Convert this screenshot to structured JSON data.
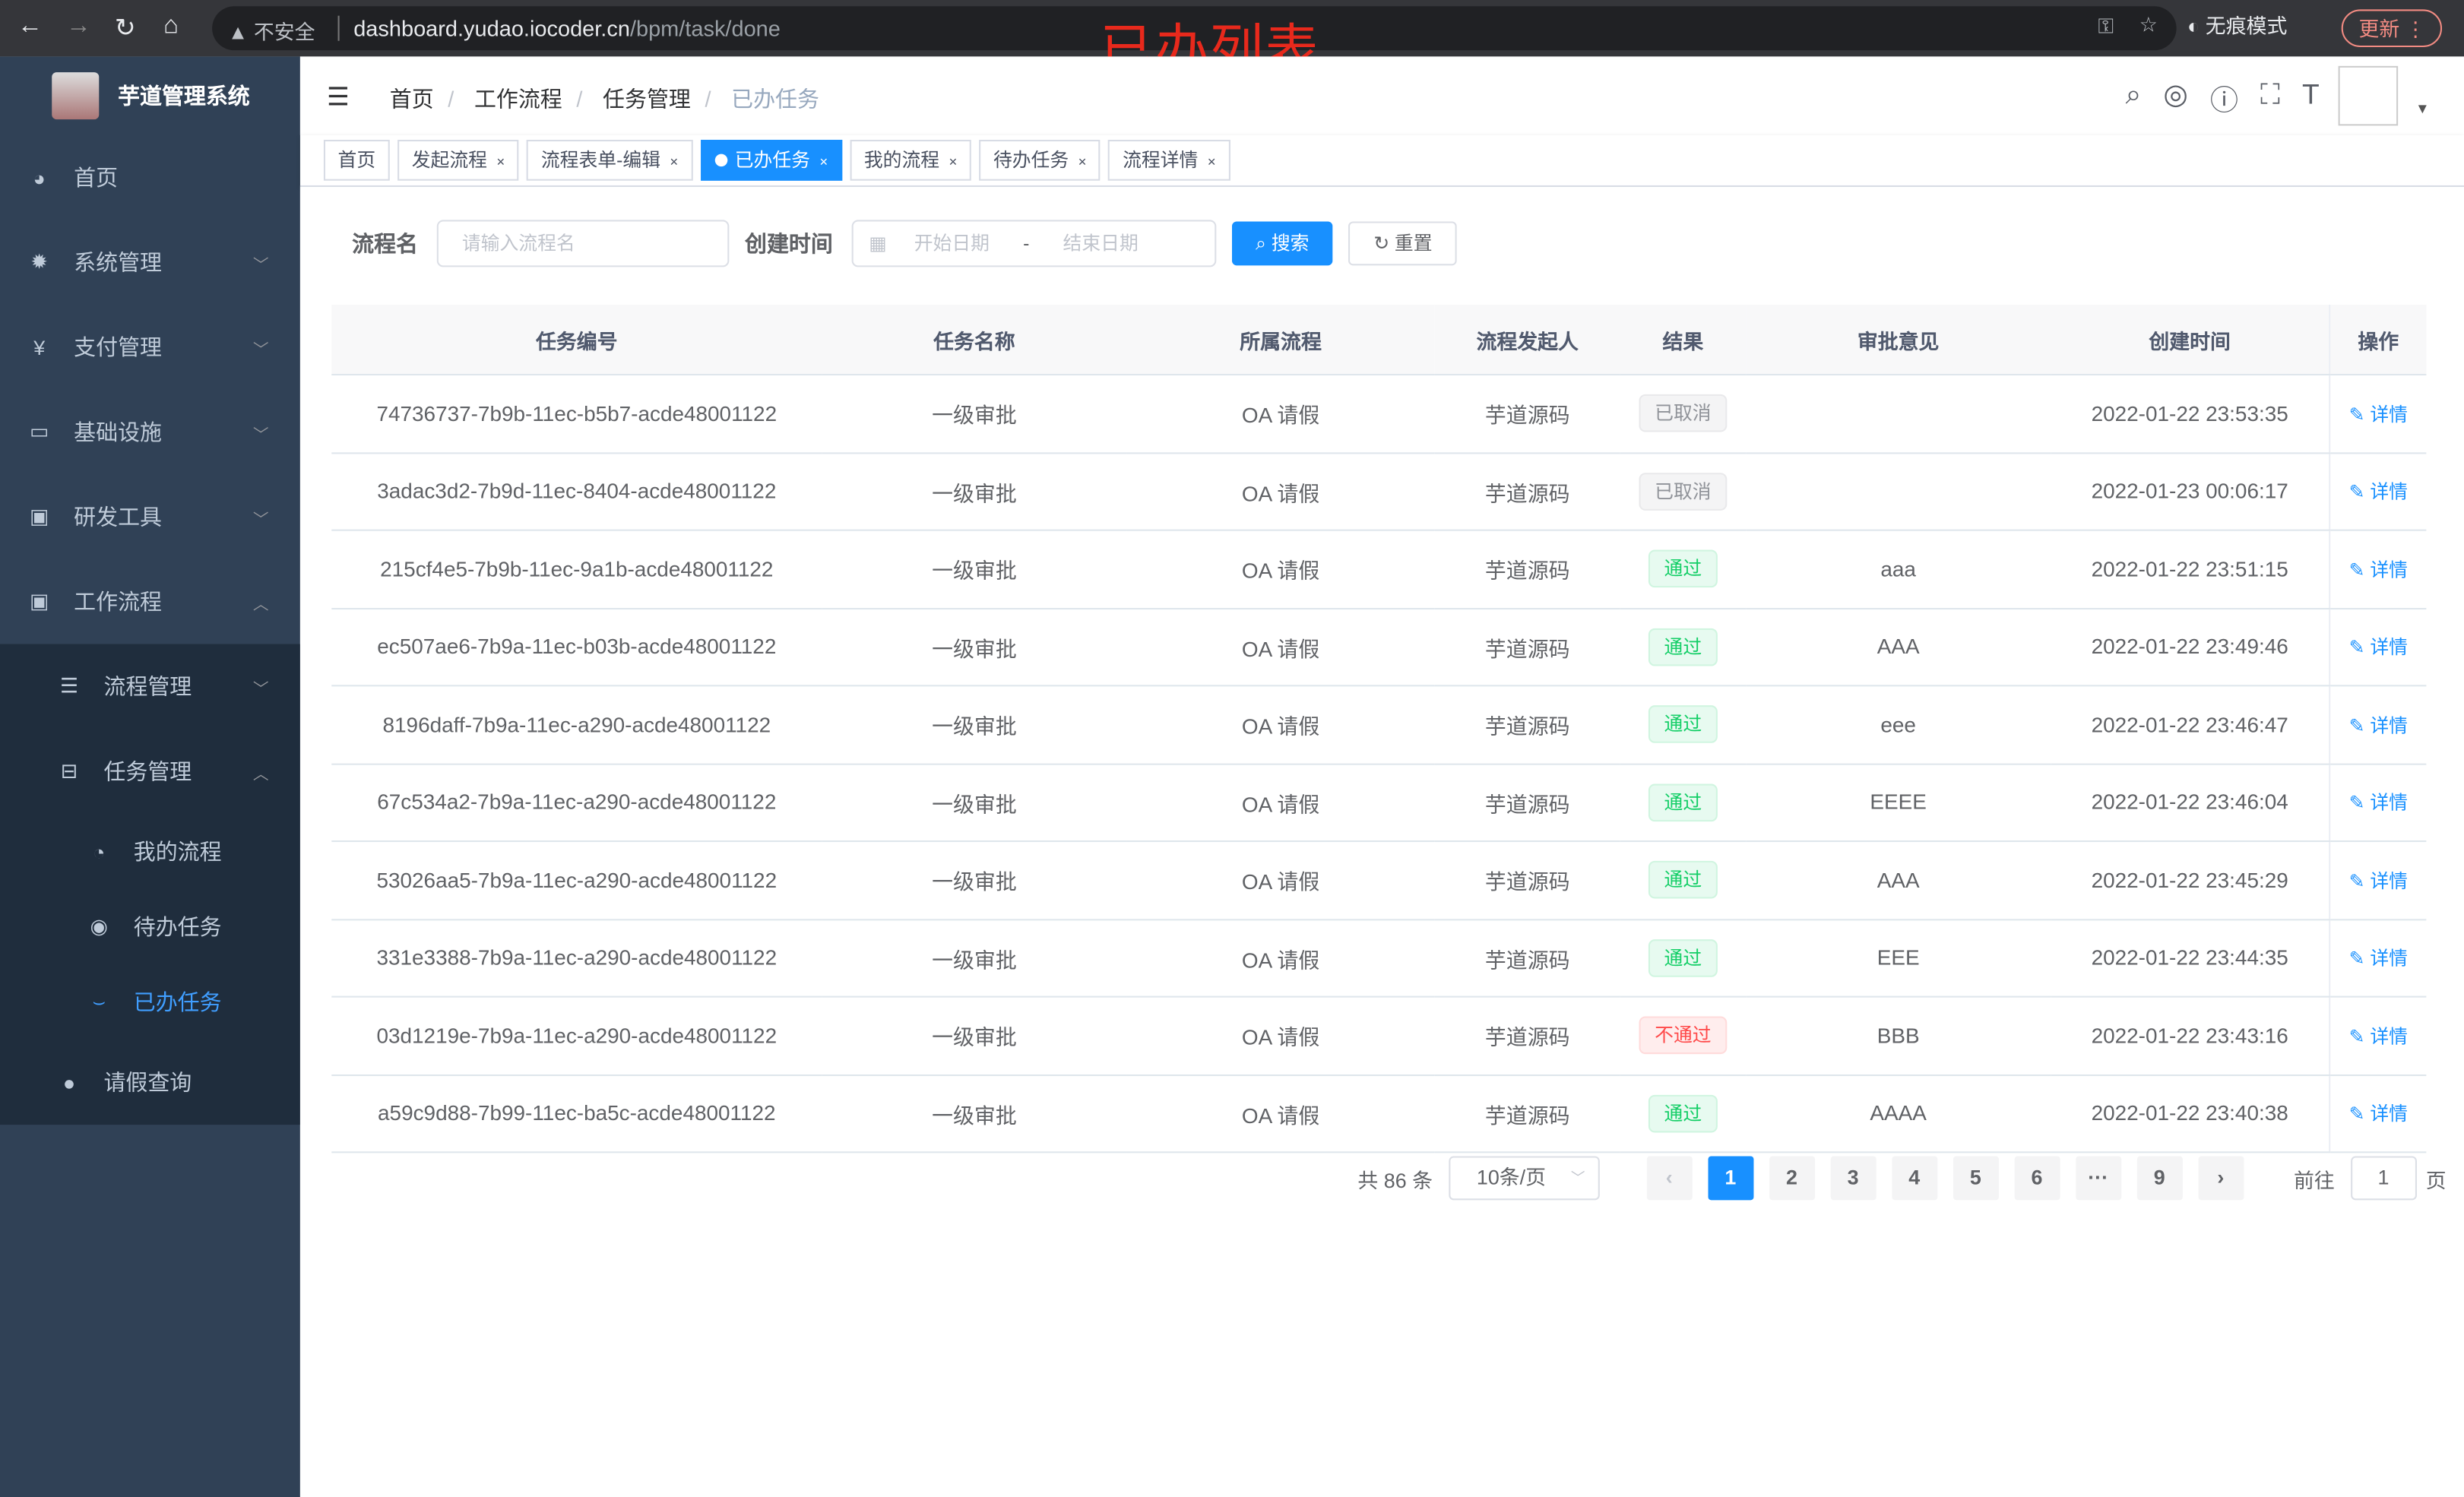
{
  "browser": {
    "url_host": "dashboard.yudao.iocoder.cn",
    "url_path": "/bpm/task/done",
    "security": "不安全",
    "incognito": "无痕模式",
    "update": "更新"
  },
  "annotation": "已办列表",
  "app": {
    "title": "芋道管理系统"
  },
  "sidebar": {
    "items": [
      {
        "label": "首页",
        "icon": "dashboard-icon"
      },
      {
        "label": "系统管理",
        "icon": "gear-icon"
      },
      {
        "label": "支付管理",
        "icon": "yen-icon"
      },
      {
        "label": "基础设施",
        "icon": "monitor-icon"
      },
      {
        "label": "研发工具",
        "icon": "toolbox-icon"
      },
      {
        "label": "工作流程",
        "icon": "toolbox-icon"
      }
    ],
    "workflow_children": [
      {
        "label": "流程管理"
      },
      {
        "label": "任务管理"
      },
      {
        "label": "请假查询"
      }
    ],
    "task_children": [
      {
        "label": "我的流程"
      },
      {
        "label": "待办任务"
      },
      {
        "label": "已办任务",
        "active": true
      }
    ]
  },
  "breadcrumb": [
    "首页",
    "工作流程",
    "任务管理",
    "已办任务"
  ],
  "tags": [
    {
      "label": "首页"
    },
    {
      "label": "发起流程"
    },
    {
      "label": "流程表单-编辑"
    },
    {
      "label": "已办任务",
      "active": true
    },
    {
      "label": "我的流程"
    },
    {
      "label": "待办任务"
    },
    {
      "label": "流程详情"
    }
  ],
  "search": {
    "name_label": "流程名",
    "name_placeholder": "请输入流程名",
    "time_label": "创建时间",
    "start_placeholder": "开始日期",
    "range_sep": "-",
    "end_placeholder": "结束日期",
    "search_btn": "搜索",
    "reset_btn": "重置"
  },
  "table": {
    "headers": [
      "任务编号",
      "任务名称",
      "所属流程",
      "流程发起人",
      "结果",
      "审批意见",
      "创建时间",
      "操作"
    ],
    "detail_label": "详情",
    "rows": [
      {
        "id": "74736737-7b9b-11ec-b5b7-acde48001122",
        "name": "一级审批",
        "process": "OA 请假",
        "starter": "芋道源码",
        "result": "已取消",
        "result_type": "info",
        "comment": "",
        "time": "2022-01-22 23:53:35"
      },
      {
        "id": "3adac3d2-7b9d-11ec-8404-acde48001122",
        "name": "一级审批",
        "process": "OA 请假",
        "starter": "芋道源码",
        "result": "已取消",
        "result_type": "info",
        "comment": "",
        "time": "2022-01-23 00:06:17"
      },
      {
        "id": "215cf4e5-7b9b-11ec-9a1b-acde48001122",
        "name": "一级审批",
        "process": "OA 请假",
        "starter": "芋道源码",
        "result": "通过",
        "result_type": "success",
        "comment": "aaa",
        "time": "2022-01-22 23:51:15"
      },
      {
        "id": "ec507ae6-7b9a-11ec-b03b-acde48001122",
        "name": "一级审批",
        "process": "OA 请假",
        "starter": "芋道源码",
        "result": "通过",
        "result_type": "success",
        "comment": "AAA",
        "time": "2022-01-22 23:49:46"
      },
      {
        "id": "8196daff-7b9a-11ec-a290-acde48001122",
        "name": "一级审批",
        "process": "OA 请假",
        "starter": "芋道源码",
        "result": "通过",
        "result_type": "success",
        "comment": "eee",
        "time": "2022-01-22 23:46:47"
      },
      {
        "id": "67c534a2-7b9a-11ec-a290-acde48001122",
        "name": "一级审批",
        "process": "OA 请假",
        "starter": "芋道源码",
        "result": "通过",
        "result_type": "success",
        "comment": "EEEE",
        "time": "2022-01-22 23:46:04"
      },
      {
        "id": "53026aa5-7b9a-11ec-a290-acde48001122",
        "name": "一级审批",
        "process": "OA 请假",
        "starter": "芋道源码",
        "result": "通过",
        "result_type": "success",
        "comment": "AAA",
        "time": "2022-01-22 23:45:29"
      },
      {
        "id": "331e3388-7b9a-11ec-a290-acde48001122",
        "name": "一级审批",
        "process": "OA 请假",
        "starter": "芋道源码",
        "result": "通过",
        "result_type": "success",
        "comment": "EEE",
        "time": "2022-01-22 23:44:35"
      },
      {
        "id": "03d1219e-7b9a-11ec-a290-acde48001122",
        "name": "一级审批",
        "process": "OA 请假",
        "starter": "芋道源码",
        "result": "不通过",
        "result_type": "danger",
        "comment": "BBB",
        "time": "2022-01-22 23:43:16"
      },
      {
        "id": "a59c9d88-7b99-11ec-ba5c-acde48001122",
        "name": "一级审批",
        "process": "OA 请假",
        "starter": "芋道源码",
        "result": "通过",
        "result_type": "success",
        "comment": "AAAA",
        "time": "2022-01-22 23:40:38"
      }
    ]
  },
  "pagination": {
    "total": "共 86 条",
    "page_size": "10条/页",
    "pages": [
      "1",
      "2",
      "3",
      "4",
      "5",
      "6",
      "···",
      "9"
    ],
    "current": "1",
    "goto_label": "前往",
    "goto_value": "1",
    "page_unit": "页"
  }
}
